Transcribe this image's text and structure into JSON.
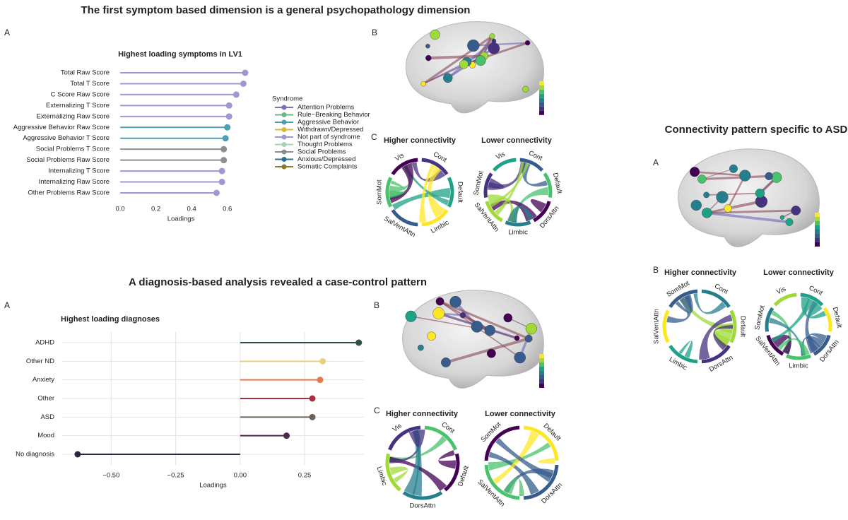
{
  "top": {
    "title": "The first symptom based dimension is a general psychopathology dimension",
    "label_a": "A",
    "label_b": "B",
    "label_c": "C",
    "higher": {
      "title": "Higher connectivity",
      "labels": [
        "Cont",
        "Default",
        "Limbic",
        "SalVentAttn",
        "SomMot",
        "Vis"
      ]
    },
    "lower": {
      "title": "Lower connectivity",
      "labels": [
        "Cont",
        "Default",
        "DorsAttn",
        "Limbic",
        "SalVentAttn",
        "SomMot",
        "Vis"
      ]
    }
  },
  "middle": {
    "title": "A diagnosis-based analysis revealed a case-control pattern",
    "label_a": "A",
    "label_b": "B",
    "label_c": "C",
    "higher": {
      "title": "Higher connectivity",
      "labels": [
        "Cont",
        "Default",
        "DorsAttn",
        "Limbic",
        "Vis"
      ]
    },
    "lower": {
      "title": "Lower connectivity",
      "labels": [
        "Default",
        "DorsAttn",
        "SalVentAttn",
        "SomMot"
      ]
    }
  },
  "right": {
    "title": "Connectivity pattern specific to ASD",
    "label_a": "A",
    "label_b": "B",
    "higher": {
      "title": "Higher connectivity",
      "labels": [
        "Cont",
        "Default",
        "DorsAttn",
        "Limbic",
        "SalVentAttn",
        "SomMot"
      ]
    },
    "lower": {
      "title": "Lower connectivity",
      "labels": [
        "Cont",
        "Default",
        "DorsAttn",
        "Limbic",
        "SalVentAttn",
        "SomMot",
        "Vis"
      ]
    }
  },
  "chart_data": [
    {
      "type": "lollipop",
      "title": "Highest loading symptoms in LV1",
      "x_label": "Loadings",
      "categories": [
        "Total Raw Score",
        "Total T Score",
        "C Score Raw Score",
        "Externalizing T Score",
        "Externalizing Raw Score",
        "Aggressive Behavior Raw Score",
        "Aggressive Behavior T Score",
        "Social Problems T Score",
        "Social Problems Raw Score",
        "Internalizing T Score",
        "Internalizing Raw Score",
        "Other Problems Raw Score"
      ],
      "values": [
        0.7,
        0.69,
        0.65,
        0.61,
        0.61,
        0.6,
        0.59,
        0.58,
        0.58,
        0.57,
        0.57,
        0.54
      ],
      "colors": [
        "#9d98d2",
        "#9d98d2",
        "#9d98d2",
        "#9d98d2",
        "#9d98d2",
        "#4d9fb2",
        "#4d9fb2",
        "#8e8e8e",
        "#8e8e8e",
        "#9d98d2",
        "#9d98d2",
        "#9d98d2"
      ],
      "xlim": [
        -0.04,
        0.72
      ],
      "xticks": [
        {
          "value": 0,
          "label": "0.0"
        },
        0.2,
        0.4,
        0.6
      ],
      "grid": false,
      "legend": {
        "title": "Syndrome",
        "items": [
          {
            "name": "Attention Problems",
            "color": "#7e6fb3"
          },
          {
            "name": "Rule−Breaking Behavior",
            "color": "#6cb38a"
          },
          {
            "name": "Aggressive Behavior",
            "color": "#4d9fb2"
          },
          {
            "name": "Withdrawn/Depressed",
            "color": "#d8b93a"
          },
          {
            "name": "Not part of syndrome",
            "color": "#9d98d2"
          },
          {
            "name": "Thought Problems",
            "color": "#a8d2b8"
          },
          {
            "name": "Social Problems",
            "color": "#8e8e8e"
          },
          {
            "name": "Anxious/Depressed",
            "color": "#2f6f8a"
          },
          {
            "name": "Somatic Complaints",
            "color": "#8c7a2a"
          }
        ]
      }
    },
    {
      "type": "lollipop",
      "title": "Highest loading diagnoses",
      "x_label": "Loadings",
      "categories": [
        "ADHD",
        "Other ND",
        "Anxiety",
        "Other",
        "ASD",
        "Mood",
        "No diagnosis"
      ],
      "values": [
        0.46,
        0.32,
        0.31,
        0.28,
        0.28,
        0.18,
        -0.63
      ],
      "colors": [
        "#2f4f3f",
        "#e6d27a",
        "#e8784a",
        "#a63040",
        "#6b6358",
        "#4a2a4a",
        "#262a45"
      ],
      "xlim": [
        -0.69,
        0.48
      ],
      "xticks": [
        {
          "value": -0.5,
          "label": "−0.50"
        },
        {
          "value": -0.25,
          "label": "−0.25"
        },
        {
          "value": 0,
          "label": "0.00"
        },
        0.25
      ],
      "grid": true
    }
  ]
}
